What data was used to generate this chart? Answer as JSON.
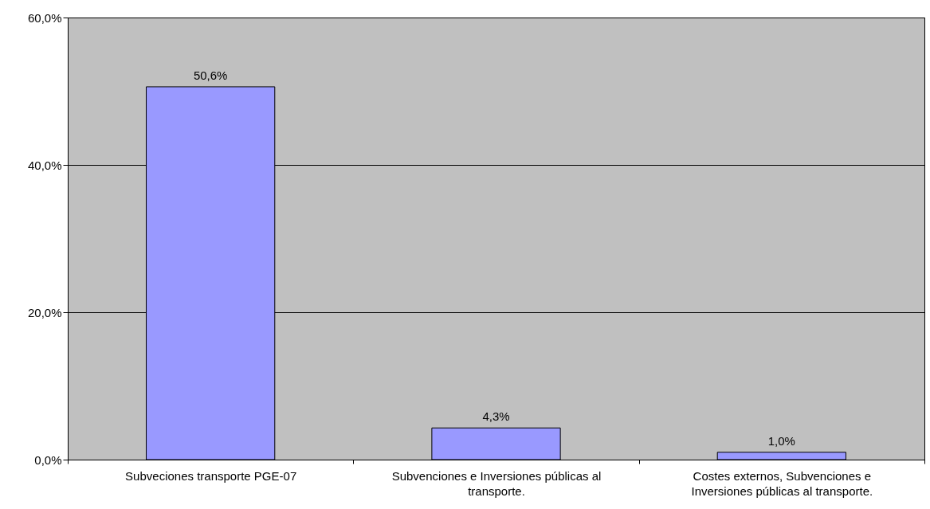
{
  "chart_data": {
    "type": "bar",
    "categories": [
      "Subveciones transporte PGE-07",
      "Subvenciones e Inversiones públicas al transporte.",
      "Costes externos, Subvenciones e Inversiones públicas al transporte."
    ],
    "values": [
      50.6,
      4.3,
      1.0
    ],
    "value_labels": [
      "50,6%",
      "4,3%",
      "1,0%"
    ],
    "color": "#9999ff",
    "ylim": [
      0,
      60
    ],
    "yticks": [
      {
        "value": 0,
        "label": "0,0%"
      },
      {
        "value": 20,
        "label": "20,0%"
      },
      {
        "value": 40,
        "label": "40,0%"
      },
      {
        "value": 60,
        "label": "60,0%"
      }
    ],
    "grid": "y"
  }
}
